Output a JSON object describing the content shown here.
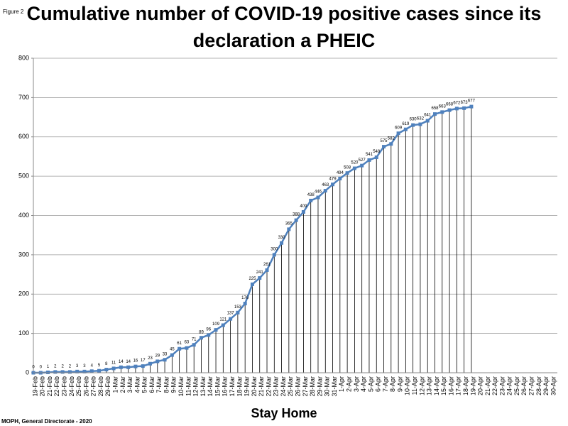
{
  "figure_label": "Figure 2",
  "chart_data": {
    "type": "line",
    "title": "Cumulative number of COVID-19 positive cases since its declaration a PHEIC",
    "x_label": "Stay Home",
    "source": "MOPH, General Directorate - 2020",
    "categories": [
      "19-Feb",
      "20-Feb",
      "21-Feb",
      "22-Feb",
      "23-Feb",
      "24-Feb",
      "25-Feb",
      "26-Feb",
      "27-Feb",
      "28-Feb",
      "29-Feb",
      "1-Mar",
      "2-Mar",
      "3-Mar",
      "4-Mar",
      "5-Mar",
      "6-Mar",
      "7-Mar",
      "8-Mar",
      "9-Mar",
      "10-Mar",
      "11-Mar",
      "12-Mar",
      "13-Mar",
      "14-Mar",
      "15-Mar",
      "16-Mar",
      "17-Mar",
      "18-Mar",
      "19-Mar",
      "20-Mar",
      "21-Mar",
      "22-Mar",
      "23-Mar",
      "24-Mar",
      "25-Mar",
      "26-Mar",
      "27-Mar",
      "28-Mar",
      "29-Mar",
      "30-Mar",
      "31-Mar",
      "1-Apr",
      "2-Apr",
      "3-Apr",
      "4-Apr",
      "5-Apr",
      "6-Apr",
      "7-Apr",
      "8-Apr",
      "9-Apr",
      "10-Apr",
      "11-Apr",
      "12-Apr",
      "13-Apr",
      "14-Apr",
      "15-Apr",
      "16-Apr",
      "17-Apr",
      "18-Apr",
      "19-Apr",
      "20-Apr",
      "21-Apr",
      "22-Apr",
      "23-Apr",
      "24-Apr",
      "25-Apr",
      "26-Apr",
      "27-Apr",
      "28-Apr",
      "29-Apr",
      "30-Apr"
    ],
    "values": [
      0,
      0,
      1,
      2,
      2,
      2,
      3,
      3,
      4,
      5,
      8,
      11,
      14,
      14,
      16,
      17,
      23,
      29,
      33,
      45,
      61,
      63,
      71,
      89,
      96,
      109,
      121,
      137,
      153,
      176,
      225,
      241,
      261,
      300,
      330,
      365,
      388,
      409,
      438,
      446,
      463,
      479,
      494,
      508,
      520,
      527,
      541,
      548,
      575,
      582,
      609,
      619,
      630,
      632,
      641,
      658,
      663,
      668,
      672,
      673,
      677,
      null,
      null,
      null,
      null,
      null,
      null,
      null,
      null,
      null,
      null,
      null
    ],
    "color": "#4f81bd",
    "drop_line_color": "#000000",
    "ylim": [
      0,
      800
    ],
    "yticks": [
      0,
      100,
      200,
      300,
      400,
      500,
      600,
      700,
      800
    ],
    "grid": true
  }
}
